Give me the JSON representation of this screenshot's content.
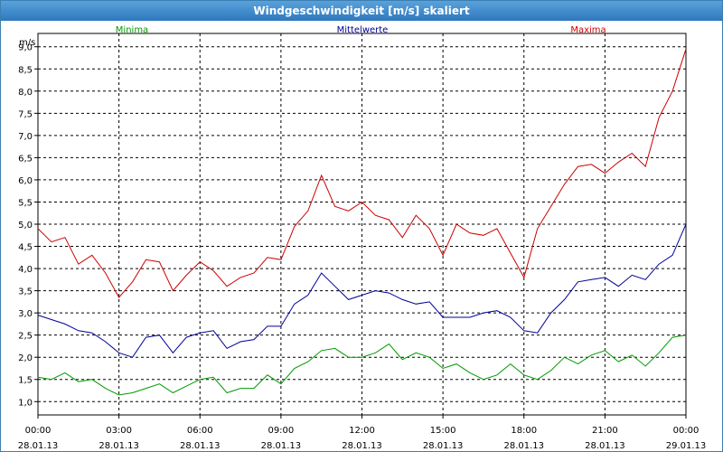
{
  "window": {
    "title": "Windgeschwindigkeit [m/s] skaliert"
  },
  "chart_data": {
    "type": "line",
    "title": "Windgeschwindigkeit [m/s] skaliert",
    "ylabel": "m/s",
    "xlabel": "",
    "ylim": [
      0.7,
      9.3
    ],
    "xlim": [
      0,
      24
    ],
    "grid": true,
    "legend_placement": "top",
    "y_ticks": [
      "1,0",
      "1,5",
      "2,0",
      "2,5",
      "3,0",
      "3,5",
      "4,0",
      "4,5",
      "5,0",
      "5,5",
      "6,0",
      "6,5",
      "7,0",
      "7,5",
      "8,0",
      "8,5",
      "9,0"
    ],
    "x_ticks": [
      {
        "time": "00:00",
        "date": "28.01.13"
      },
      {
        "time": "03:00",
        "date": "28.01.13"
      },
      {
        "time": "06:00",
        "date": "28.01.13"
      },
      {
        "time": "09:00",
        "date": "28.01.13"
      },
      {
        "time": "12:00",
        "date": "28.01.13"
      },
      {
        "time": "15:00",
        "date": "28.01.13"
      },
      {
        "time": "18:00",
        "date": "28.01.13"
      },
      {
        "time": "21:00",
        "date": "28.01.13"
      },
      {
        "time": "00:00",
        "date": "29.01.13"
      }
    ],
    "x_hours": [
      0,
      0.5,
      1,
      1.5,
      2,
      2.5,
      3,
      3.5,
      4,
      4.5,
      5,
      5.5,
      6,
      6.5,
      7,
      7.5,
      8,
      8.5,
      9,
      9.5,
      10,
      10.5,
      11,
      11.5,
      12,
      12.5,
      13,
      13.5,
      14,
      14.5,
      15,
      15.5,
      16,
      16.5,
      17,
      17.5,
      18,
      18.5,
      19,
      19.5,
      20,
      20.5,
      21,
      21.5,
      22,
      22.5,
      23,
      23.5,
      24
    ],
    "series": [
      {
        "name": "Minima",
        "color": "#009900",
        "values": [
          1.55,
          1.5,
          1.65,
          1.45,
          1.5,
          1.3,
          1.15,
          1.2,
          1.3,
          1.4,
          1.2,
          1.35,
          1.5,
          1.55,
          1.2,
          1.3,
          1.3,
          1.6,
          1.4,
          1.75,
          1.9,
          2.15,
          2.2,
          2.0,
          2.0,
          2.1,
          2.3,
          1.95,
          2.1,
          2.0,
          1.75,
          1.85,
          1.65,
          1.5,
          1.6,
          1.85,
          1.6,
          1.5,
          1.7,
          2.0,
          1.85,
          2.05,
          2.15,
          1.9,
          2.05,
          1.8,
          2.1,
          2.45,
          2.5
        ]
      },
      {
        "name": "Mittelwerte",
        "color": "#000099",
        "values": [
          2.95,
          2.85,
          2.75,
          2.6,
          2.55,
          2.35,
          2.1,
          2.0,
          2.45,
          2.5,
          2.1,
          2.45,
          2.55,
          2.6,
          2.2,
          2.35,
          2.4,
          2.7,
          2.7,
          3.2,
          3.4,
          3.9,
          3.6,
          3.3,
          3.4,
          3.5,
          3.45,
          3.3,
          3.2,
          3.25,
          2.9,
          2.9,
          2.9,
          3.0,
          3.05,
          2.9,
          2.6,
          2.55,
          3.0,
          3.3,
          3.7,
          3.75,
          3.8,
          3.6,
          3.85,
          3.75,
          4.1,
          4.3,
          5.0
        ]
      },
      {
        "name": "Maxima",
        "color": "#cc0000",
        "values": [
          4.9,
          4.6,
          4.7,
          4.1,
          4.3,
          3.9,
          3.35,
          3.7,
          4.2,
          4.15,
          3.5,
          3.85,
          4.15,
          3.95,
          3.6,
          3.8,
          3.9,
          4.25,
          4.2,
          4.95,
          5.3,
          6.1,
          5.4,
          5.3,
          5.5,
          5.2,
          5.1,
          4.7,
          5.2,
          4.9,
          4.3,
          5.0,
          4.8,
          4.75,
          4.9,
          4.35,
          3.8,
          4.9,
          5.4,
          5.9,
          6.3,
          6.35,
          6.15,
          6.4,
          6.6,
          6.3,
          7.4,
          8.0,
          8.95
        ]
      }
    ]
  }
}
